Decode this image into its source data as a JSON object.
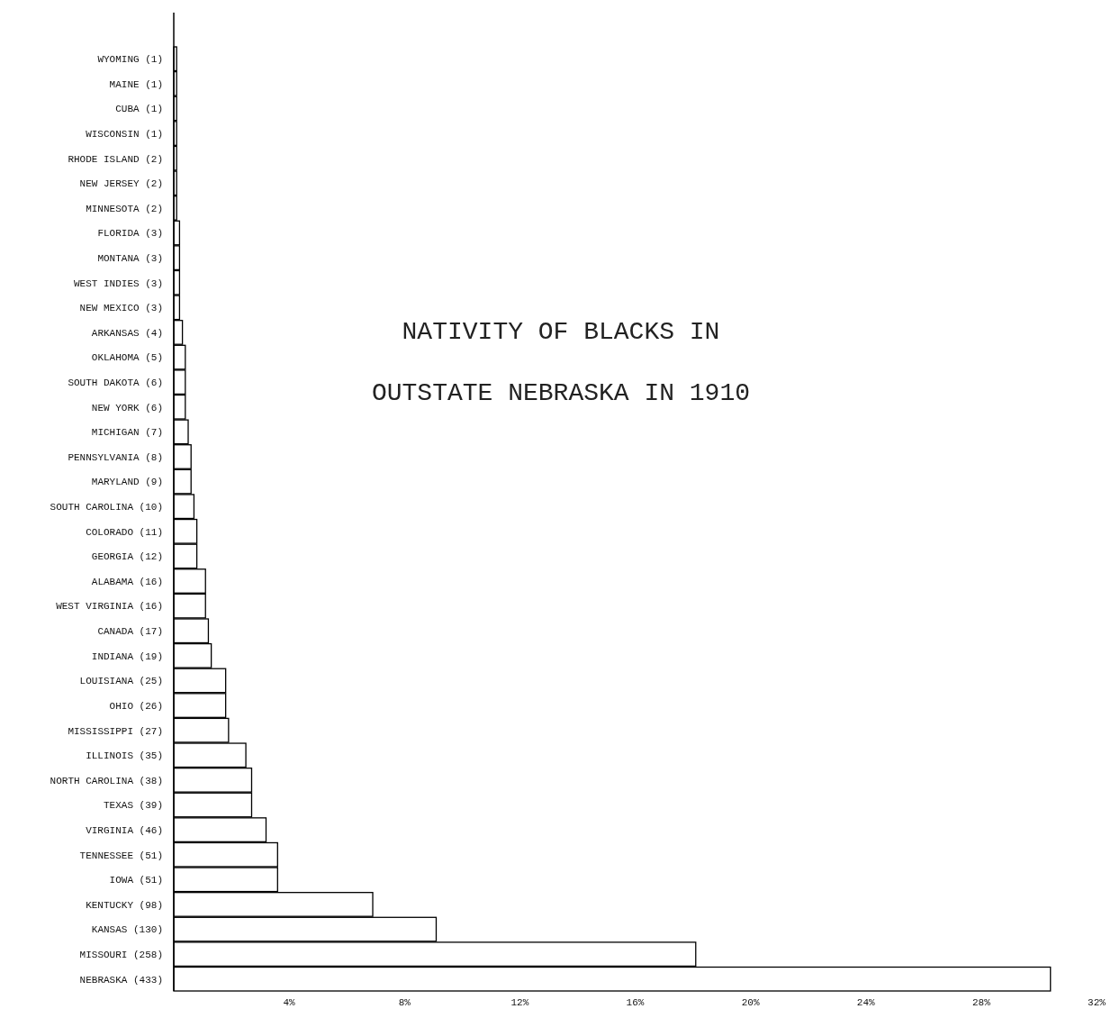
{
  "chart_data": {
    "type": "bar",
    "orientation": "horizontal",
    "title": "NATIVITY OF BLACKS IN\nOUTSTATE NEBRASKA IN 1910",
    "categories": [
      "WYOMING (1)",
      "MAINE (1)",
      "CUBA (1)",
      "WISCONSIN (1)",
      "RHODE ISLAND (2)",
      "NEW JERSEY (2)",
      "MINNESOTA (2)",
      "FLORIDA (3)",
      "MONTANA (3)",
      "WEST INDIES (3)",
      "NEW MEXICO (3)",
      "ARKANSAS (4)",
      "OKLAHOMA (5)",
      "SOUTH DAKOTA (6)",
      "NEW YORK (6)",
      "MICHIGAN (7)",
      "PENNSYLVANIA (8)",
      "MARYLAND (9)",
      "SOUTH CAROLINA (10)",
      "COLORADO (11)",
      "GEORGIA (12)",
      "ALABAMA (16)",
      "WEST VIRGINIA (16)",
      "CANADA (17)",
      "INDIANA (19)",
      "LOUISIANA (25)",
      "OHIO (26)",
      "MISSISSIPPI (27)",
      "ILLINOIS (35)",
      "NORTH CAROLINA (38)",
      "TEXAS (39)",
      "VIRGINIA (46)",
      "TENNESSEE (51)",
      "IOWA (51)",
      "KENTUCKY (98)",
      "KANSAS (130)",
      "MISSOURI (258)",
      "NEBRASKA (433)"
    ],
    "values": [
      0.1,
      0.1,
      0.1,
      0.1,
      0.1,
      0.1,
      0.1,
      0.2,
      0.2,
      0.2,
      0.2,
      0.3,
      0.4,
      0.4,
      0.4,
      0.5,
      0.6,
      0.6,
      0.7,
      0.8,
      0.8,
      1.1,
      1.1,
      1.2,
      1.3,
      1.8,
      1.8,
      1.9,
      2.5,
      2.7,
      2.7,
      3.2,
      3.6,
      3.6,
      6.9,
      9.1,
      18.1,
      30.4
    ],
    "color": "#ffffff",
    "xlim": [
      0,
      32
    ],
    "xticks": [
      {
        "value": 4,
        "label": "4%"
      },
      {
        "value": 8,
        "label": "8%"
      },
      {
        "value": 12,
        "label": "12%"
      },
      {
        "value": 16,
        "label": "16%"
      },
      {
        "value": 20,
        "label": "20%"
      },
      {
        "value": 24,
        "label": "24%"
      },
      {
        "value": 28,
        "label": "28%"
      },
      {
        "value": 32,
        "label": "32%"
      }
    ],
    "grid": false
  }
}
